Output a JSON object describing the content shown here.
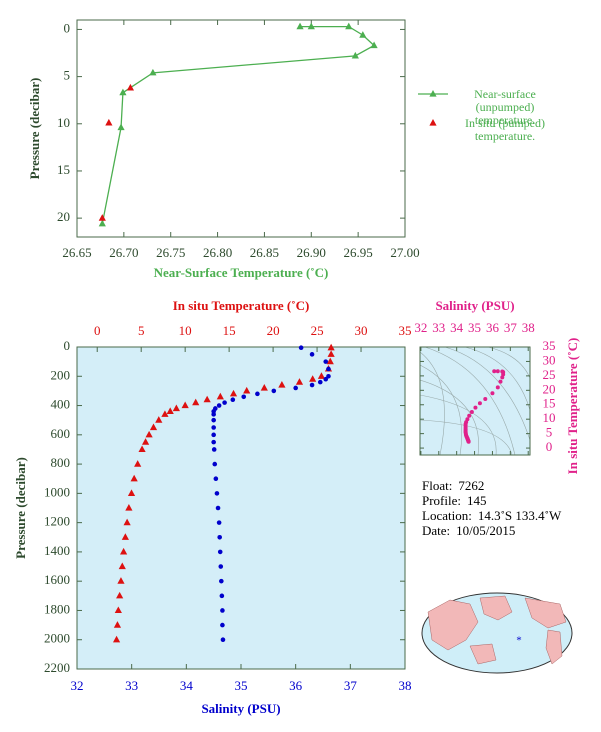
{
  "chart_data": [
    {
      "type": "line",
      "xlabel": "Near-Surface Temperature (˚C)",
      "ylabel": "Pressure (decibar)",
      "xlim": [
        26.65,
        27.0
      ],
      "xticks": [
        26.65,
        {
          "value": 26.7,
          "label": "26.70"
        },
        26.75,
        {
          "value": 26.8,
          "label": "26.80"
        },
        26.85,
        {
          "value": 26.9,
          "label": "26.90"
        },
        26.95,
        {
          "value": 27.0,
          "label": "27.00"
        }
      ],
      "ylim": [
        22,
        -1
      ],
      "yticks": [
        0,
        5,
        10,
        15,
        20
      ],
      "series": [
        {
          "name": "Near-surface (unpumped) temperature.",
          "color": "#4caf50",
          "line": true,
          "marker": "triangle",
          "x": [
            26.888,
            26.9,
            26.94,
            26.955,
            26.967,
            26.947,
            26.731,
            26.699,
            26.697,
            26.677
          ],
          "y": [
            -0.3,
            -0.3,
            -0.3,
            0.6,
            1.7,
            2.8,
            4.6,
            6.7,
            10.4,
            20.6
          ]
        },
        {
          "name": "In situ (pumped) temperature.",
          "color": "#dd1111",
          "line": false,
          "marker": "triangle",
          "x": [
            26.707,
            26.684,
            26.677
          ],
          "y": [
            6.2,
            9.9,
            20.0
          ]
        }
      ]
    },
    {
      "type": "profile",
      "xlabel": "Salinity (PSU)",
      "x2label": "In situ Temperature (˚C)",
      "ylabel": "Pressure (decibar)",
      "xlim": [
        32,
        38
      ],
      "xticks": [
        32,
        33,
        34,
        35,
        36,
        37,
        38
      ],
      "x2lim": [
        -2.3,
        35
      ],
      "x2ticks": [
        0,
        5,
        10,
        15,
        20,
        25,
        30,
        35
      ],
      "ylim": [
        2200,
        0
      ],
      "yticks": [
        0,
        200,
        400,
        600,
        800,
        1000,
        1200,
        1400,
        1600,
        1800,
        2000,
        2200
      ],
      "background": "#d4eef8",
      "y": [
        5,
        50,
        100,
        150,
        200,
        220,
        240,
        260,
        280,
        300,
        320,
        340,
        360,
        380,
        400,
        420,
        440,
        460,
        500,
        550,
        600,
        650,
        700,
        800,
        900,
        1000,
        1100,
        1200,
        1300,
        1400,
        1500,
        1600,
        1700,
        1800,
        1900,
        2000
      ],
      "series": [
        {
          "axis": "x2",
          "color": "#dd1111",
          "marker": "triangle",
          "values": [
            26.6,
            26.6,
            26.5,
            26.3,
            25.5,
            24.5,
            23,
            21,
            19,
            17,
            15.5,
            14,
            12.5,
            11.2,
            10,
            9,
            8.3,
            7.7,
            7,
            6.4,
            5.9,
            5.5,
            5.1,
            4.6,
            4.2,
            3.9,
            3.6,
            3.4,
            3.2,
            3.0,
            2.85,
            2.7,
            2.55,
            2.4,
            2.3,
            2.2
          ]
        },
        {
          "axis": "x",
          "color": "#0000cc",
          "marker": "circle",
          "values": [
            36.1,
            36.3,
            36.55,
            36.6,
            36.6,
            36.55,
            36.45,
            36.3,
            36.0,
            35.6,
            35.3,
            35.05,
            34.85,
            34.7,
            34.6,
            34.53,
            34.5,
            34.5,
            34.5,
            34.5,
            34.5,
            34.5,
            34.51,
            34.52,
            34.54,
            34.56,
            34.58,
            34.6,
            34.61,
            34.62,
            34.63,
            34.64,
            34.65,
            34.66,
            34.66,
            34.67
          ]
        }
      ]
    },
    {
      "type": "ts",
      "xlabel": "Salinity (PSU)",
      "ylabel": "In situ Temperature (˚C)",
      "color": "#e0218a",
      "xlim": [
        31.95,
        38.1
      ],
      "xticks": [
        32,
        33,
        34,
        35,
        36,
        37,
        38
      ],
      "ylim": [
        -2.4,
        35
      ],
      "yticks": [
        0,
        5,
        10,
        15,
        20,
        25,
        30,
        35
      ]
    }
  ],
  "float_info": {
    "rows": [
      {
        "label": "Float:",
        "value": "7262"
      },
      {
        "label": "Profile:",
        "value": "145"
      },
      {
        "label": "Location:",
        "value": "14.3˚S  133.4˚W"
      },
      {
        "label": "Date:",
        "value": "10/05/2015"
      }
    ]
  }
}
